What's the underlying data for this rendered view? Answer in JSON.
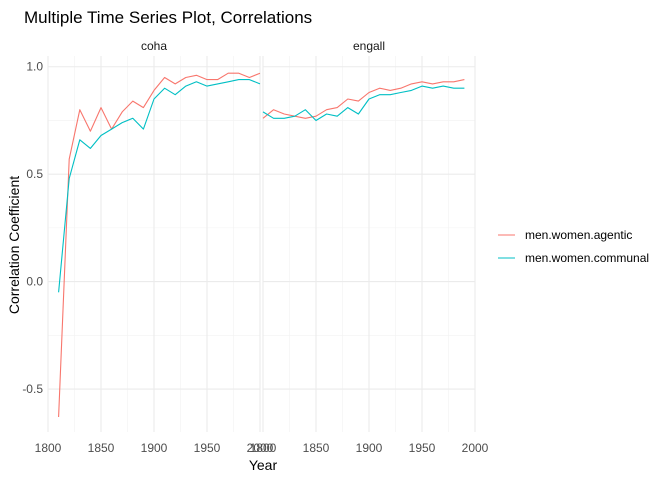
{
  "chart_data": {
    "type": "line",
    "title": "Multiple Time Series Plot, Correlations",
    "xlabel": "Year",
    "ylabel": "Correlation Coefficient",
    "xlim": [
      1800,
      2000
    ],
    "ylim": [
      -0.7,
      1.05
    ],
    "x_ticks": [
      1800,
      1850,
      1900,
      1950,
      2000
    ],
    "y_ticks": [
      -0.5,
      0.0,
      0.5,
      1.0
    ],
    "x_tick_labels": [
      "1800",
      "1850",
      "1900",
      "1950",
      "2000"
    ],
    "y_tick_labels": [
      "-0.5",
      "0.0",
      "0.5",
      "1.0"
    ],
    "grid": true,
    "legend_position": "right",
    "series_colors": {
      "men.women.agentic": "#F8766D",
      "men.women.communal": "#00BFC4"
    },
    "facets": [
      {
        "name": "coha",
        "series": [
          {
            "name": "men.women.agentic",
            "x": [
              1810,
              1820,
              1830,
              1840,
              1850,
              1860,
              1870,
              1880,
              1890,
              1900,
              1910,
              1920,
              1930,
              1940,
              1950,
              1960,
              1970,
              1980,
              1990,
              2000
            ],
            "values": [
              -0.63,
              0.57,
              0.8,
              0.7,
              0.81,
              0.71,
              0.79,
              0.84,
              0.81,
              0.89,
              0.95,
              0.92,
              0.95,
              0.96,
              0.94,
              0.94,
              0.97,
              0.97,
              0.95,
              0.97
            ]
          },
          {
            "name": "men.women.communal",
            "x": [
              1810,
              1820,
              1830,
              1840,
              1850,
              1860,
              1870,
              1880,
              1890,
              1900,
              1910,
              1920,
              1930,
              1940,
              1950,
              1960,
              1970,
              1980,
              1990,
              2000
            ],
            "values": [
              -0.05,
              0.48,
              0.66,
              0.62,
              0.68,
              0.71,
              0.74,
              0.76,
              0.71,
              0.85,
              0.9,
              0.87,
              0.91,
              0.93,
              0.91,
              0.92,
              0.93,
              0.94,
              0.94,
              0.92
            ]
          }
        ]
      },
      {
        "name": "engall",
        "series": [
          {
            "name": "men.women.agentic",
            "x": [
              1800,
              1810,
              1820,
              1830,
              1840,
              1850,
              1860,
              1870,
              1880,
              1890,
              1900,
              1910,
              1920,
              1930,
              1940,
              1950,
              1960,
              1970,
              1980,
              1990
            ],
            "values": [
              0.76,
              0.8,
              0.78,
              0.77,
              0.76,
              0.77,
              0.8,
              0.81,
              0.85,
              0.84,
              0.88,
              0.9,
              0.89,
              0.9,
              0.92,
              0.93,
              0.92,
              0.93,
              0.93,
              0.94
            ]
          },
          {
            "name": "men.women.communal",
            "x": [
              1800,
              1810,
              1820,
              1830,
              1840,
              1850,
              1860,
              1870,
              1880,
              1890,
              1900,
              1910,
              1920,
              1930,
              1940,
              1950,
              1960,
              1970,
              1980,
              1990
            ],
            "values": [
              0.79,
              0.76,
              0.76,
              0.77,
              0.8,
              0.75,
              0.78,
              0.77,
              0.81,
              0.78,
              0.85,
              0.87,
              0.87,
              0.88,
              0.89,
              0.91,
              0.9,
              0.91,
              0.9,
              0.9
            ]
          }
        ]
      }
    ]
  }
}
